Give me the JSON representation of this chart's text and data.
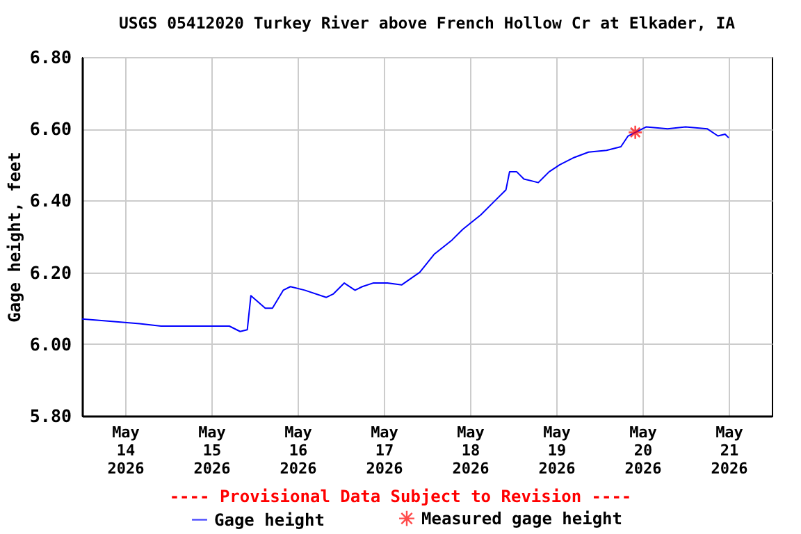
{
  "chart_data": {
    "type": "line",
    "title": "USGS 05412020 Turkey River above French Hollow Cr at Elkader, IA",
    "ylabel": "Gage height, feet",
    "annotations": [
      "---- Provisional Data Subject to Revision ----"
    ],
    "xlim": [
      "2026-05-13T12:00",
      "2026-05-21T12:00"
    ],
    "xticks": [
      {
        "value": "2026-05-14",
        "label": "May 14 2026"
      },
      {
        "value": "2026-05-15",
        "label": "May 15 2026"
      },
      {
        "value": "2026-05-16",
        "label": "May 16 2026"
      },
      {
        "value": "2026-05-17",
        "label": "May 17 2026"
      },
      {
        "value": "2026-05-18",
        "label": "May 18 2026"
      },
      {
        "value": "2026-05-19",
        "label": "May 19 2026"
      },
      {
        "value": "2026-05-20",
        "label": "May 20 2026"
      },
      {
        "value": "2026-05-21",
        "label": "May 21 2026"
      }
    ],
    "ylim": [
      5.8,
      6.8
    ],
    "yticks": [
      {
        "value": 5.8,
        "label": "5.80"
      },
      {
        "value": 6.0,
        "label": "6.00"
      },
      {
        "value": 6.2,
        "label": "6.20"
      },
      {
        "value": 6.4,
        "label": "6.40"
      },
      {
        "value": 6.6,
        "label": "6.60"
      },
      {
        "value": 6.8,
        "label": "6.80"
      }
    ],
    "grid": true,
    "legend": "bottom",
    "series": [
      {
        "name": "Gage height",
        "color": "#0000ff",
        "x": [
          "2026-05-13T12:00",
          "2026-05-13T18:00",
          "2026-05-14T04:00",
          "2026-05-14T10:00",
          "2026-05-15T05:00",
          "2026-05-15T08:00",
          "2026-05-15T10:00",
          "2026-05-15T11:00",
          "2026-05-15T15:00",
          "2026-05-15T17:00",
          "2026-05-15T20:00",
          "2026-05-15T22:00",
          "2026-05-16T02:00",
          "2026-05-16T08:00",
          "2026-05-16T10:00",
          "2026-05-16T13:00",
          "2026-05-16T16:00",
          "2026-05-16T18:00",
          "2026-05-16T21:00",
          "2026-05-17T01:00",
          "2026-05-17T05:00",
          "2026-05-17T10:00",
          "2026-05-17T14:00",
          "2026-05-17T19:00",
          "2026-05-17T22:00",
          "2026-05-18T03:00",
          "2026-05-18T07:00",
          "2026-05-18T10:00",
          "2026-05-18T11:00",
          "2026-05-18T13:00",
          "2026-05-18T15:00",
          "2026-05-18T19:00",
          "2026-05-18T22:00",
          "2026-05-19T01:00",
          "2026-05-19T05:00",
          "2026-05-19T09:00",
          "2026-05-19T14:00",
          "2026-05-19T18:00",
          "2026-05-19T20:00",
          "2026-05-20T01:00",
          "2026-05-20T07:00",
          "2026-05-20T12:00",
          "2026-05-20T18:00",
          "2026-05-20T21:00",
          "2026-05-20T23:00",
          "2026-05-21T00:00"
        ],
        "values": [
          6.07,
          6.065,
          6.057,
          6.05,
          6.05,
          6.035,
          6.04,
          6.135,
          6.1,
          6.1,
          6.15,
          6.16,
          6.15,
          6.13,
          6.14,
          6.17,
          6.15,
          6.16,
          6.17,
          6.17,
          6.165,
          6.2,
          6.25,
          6.29,
          6.32,
          6.36,
          6.4,
          6.43,
          6.48,
          6.48,
          6.46,
          6.45,
          6.48,
          6.5,
          6.52,
          6.535,
          6.54,
          6.55,
          6.58,
          6.605,
          6.6,
          6.605,
          6.6,
          6.58,
          6.585,
          6.575
        ]
      },
      {
        "name": "Measured gage height",
        "type": "scatter",
        "marker": "cross",
        "color": "#ff0000",
        "x": [
          "2026-05-19T22:00"
        ],
        "values": [
          6.59
        ]
      }
    ]
  }
}
